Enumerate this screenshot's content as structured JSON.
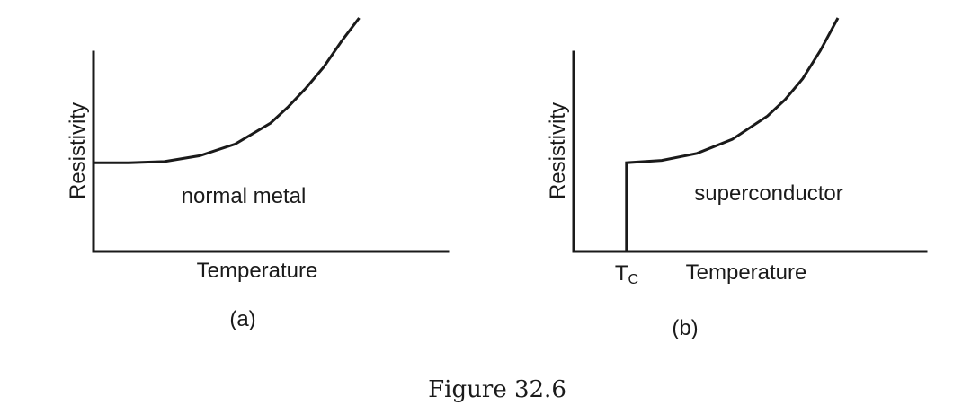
{
  "caption": "Figure 32.6",
  "chart_data": [
    {
      "type": "line",
      "panel_label": "(a)",
      "xlabel": "Temperature",
      "ylabel": "Resistivity",
      "annotation": "normal metal",
      "xlim": [
        0,
        1
      ],
      "ylim": [
        0,
        1
      ],
      "series": [
        {
          "x": [
            0.0,
            0.1,
            0.2,
            0.3,
            0.4,
            0.5,
            0.55,
            0.6,
            0.65,
            0.7,
            0.75
          ],
          "y": [
            0.38,
            0.38,
            0.385,
            0.41,
            0.46,
            0.55,
            0.62,
            0.7,
            0.79,
            0.9,
            1.0
          ]
        }
      ]
    },
    {
      "type": "line",
      "panel_label": "(b)",
      "xlabel": "Temperature",
      "ylabel": "Resistivity",
      "annotation": "superconductor",
      "tick_label": {
        "main": "T",
        "sub": "C",
        "x": 0.15
      },
      "xlim": [
        0,
        1
      ],
      "ylim": [
        0,
        1
      ],
      "series": [
        {
          "x": [
            0.15,
            0.15,
            0.25,
            0.35,
            0.45,
            0.55,
            0.6,
            0.65,
            0.7,
            0.75
          ],
          "y": [
            0.0,
            0.38,
            0.39,
            0.42,
            0.48,
            0.58,
            0.65,
            0.74,
            0.86,
            1.0
          ]
        }
      ]
    }
  ]
}
